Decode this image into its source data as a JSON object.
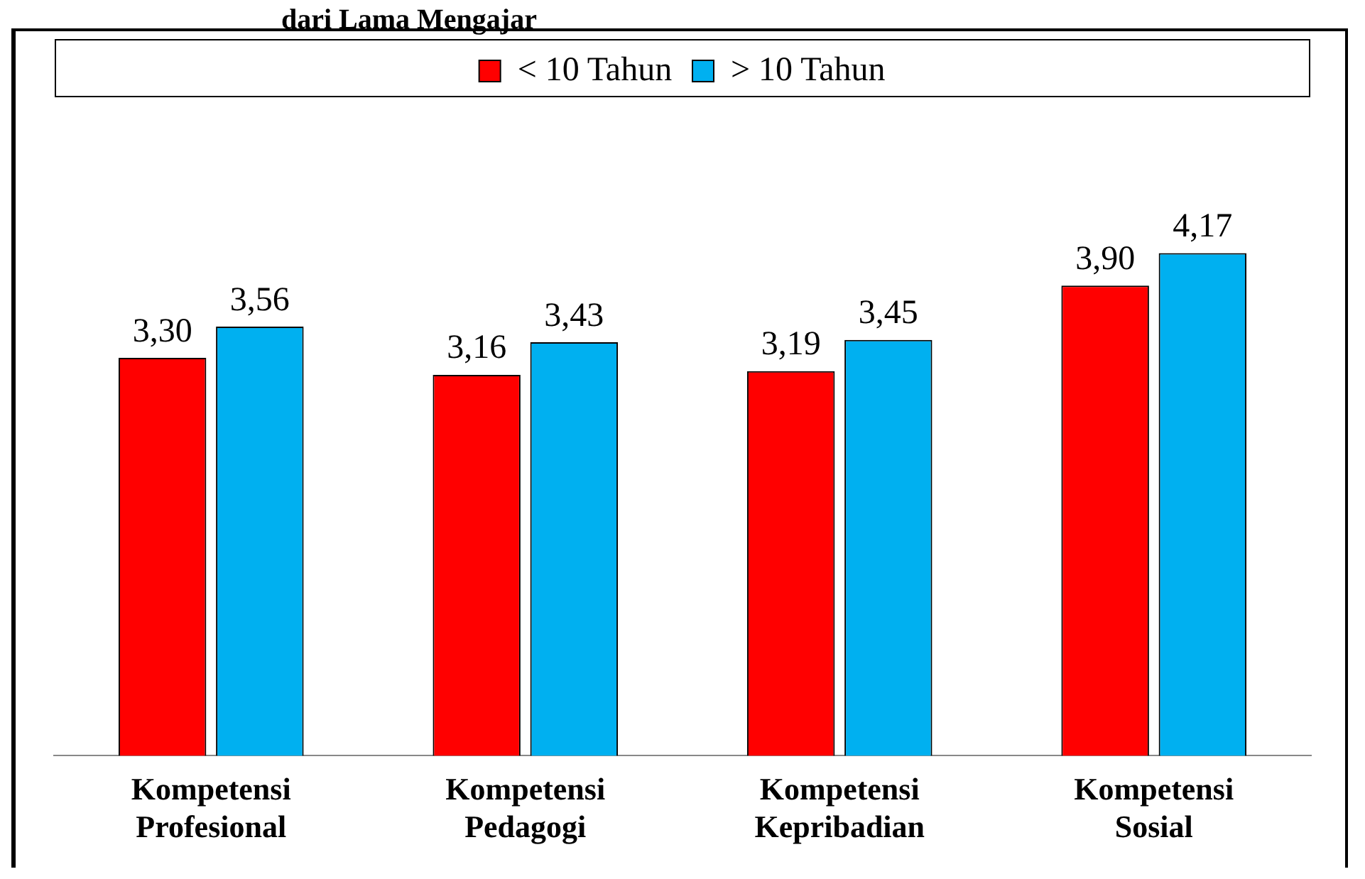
{
  "chart_data": {
    "type": "bar",
    "title": "dari Lama Mengajar",
    "categories": [
      "Kompetensi Profesional",
      "Kompetensi Pedagogi",
      "Kompetensi Kepribadian",
      "Kompetensi Sosial"
    ],
    "series": [
      {
        "name": "< 10 Tahun",
        "color": "#ff0000",
        "values": [
          3.3,
          3.16,
          3.19,
          3.9
        ],
        "value_labels": [
          "3,30",
          "3,16",
          "3,19",
          "3,90"
        ]
      },
      {
        "name": "> 10 Tahun",
        "color": "#00b0f0",
        "values": [
          3.56,
          3.43,
          3.45,
          4.17
        ],
        "value_labels": [
          "3,56",
          "3,43",
          "3,45",
          "4,17"
        ]
      }
    ],
    "legend": "top",
    "grid": false,
    "tick_labels": "x"
  }
}
